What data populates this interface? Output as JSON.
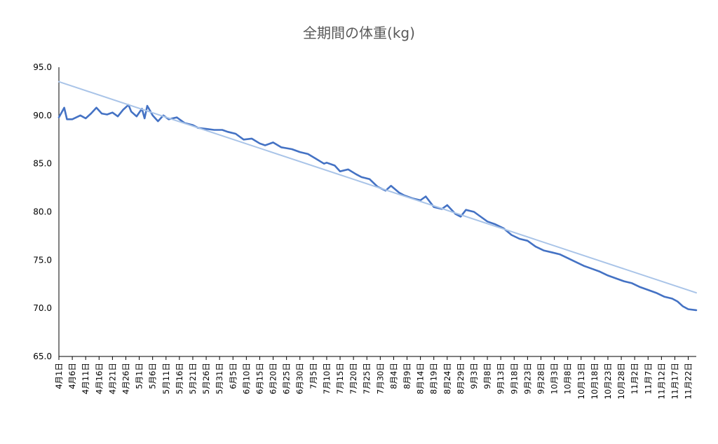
{
  "chart_data": {
    "type": "line",
    "title": "全期間の体重(kg)",
    "xlabel": "",
    "ylabel": "",
    "ylim": [
      65,
      95
    ],
    "yticks": [
      "65.0",
      "70.0",
      "75.0",
      "80.0",
      "85.0",
      "90.0",
      "95.0"
    ],
    "grid": false,
    "x_start": "4月1日",
    "x_end": "11月25日",
    "x_tick_labels": [
      "4月1日",
      "4月6日",
      "4月11日",
      "4月16日",
      "4月21日",
      "4月26日",
      "5月1日",
      "5月6日",
      "5月11日",
      "5月16日",
      "5月21日",
      "5月26日",
      "5月31日",
      "6月5日",
      "6月10日",
      "6月15日",
      "6月20日",
      "6月25日",
      "6月30日",
      "7月5日",
      "7月10日",
      "7月15日",
      "7月20日",
      "7月25日",
      "7月30日",
      "8月4日",
      "8月9日",
      "8月14日",
      "8月19日",
      "8月24日",
      "8月29日",
      "9月3日",
      "9月8日",
      "9月13日",
      "9月18日",
      "9月23日",
      "9月28日",
      "10月3日",
      "10月8日",
      "10月13日",
      "10月18日",
      "10月23日",
      "10月28日",
      "11月2日",
      "11月7日",
      "11月12日",
      "11月17日",
      "11月22日"
    ],
    "series": [
      {
        "color": "#4472c4",
        "x": [
          "4月1日",
          "4月3日",
          "4月4日",
          "4月6日",
          "4月9日",
          "4月11日",
          "4月13日",
          "4月15日",
          "4月17日",
          "4月19日",
          "4月21日",
          "4月23日",
          "4月25日",
          "4月27日",
          "4月28日",
          "4月30日",
          "5月2日",
          "5月3日",
          "5月4日",
          "5月5日",
          "5月6日",
          "5月8日",
          "5月10日",
          "5月12日",
          "5月15日",
          "5月18日",
          "5月21日",
          "5月23日",
          "5月26日",
          "5月29日",
          "6月1日",
          "6月3日",
          "6月6日",
          "6月9日",
          "6月12日",
          "6月15日",
          "6月17日",
          "6月20日",
          "6月23日",
          "6月25日",
          "6月27日",
          "6月30日",
          "7月3日",
          "7月6日",
          "7月9日",
          "7月10日",
          "7月13日",
          "7月15日",
          "7月18日",
          "7月21日",
          "7月23日",
          "7月26日",
          "7月29日",
          "8月1日",
          "8月3日",
          "8月6日",
          "8月8日",
          "8月11日",
          "8月14日",
          "8月16日",
          "8月19日",
          "8月22日",
          "8月24日",
          "8月27日",
          "8月29日",
          "8月31日",
          "9月3日",
          "9月5日",
          "9月8日",
          "9月11日",
          "9月14日",
          "9月17日",
          "9月20日",
          "9月23日",
          "9月26日",
          "9月29日",
          "10月2日",
          "10月5日",
          "10月8日",
          "10月11日",
          "10月14日",
          "10月17日",
          "10月20日",
          "10月23日",
          "10月26日",
          "10月29日",
          "11月1日",
          "11月4日",
          "11月7日",
          "11月10日",
          "11月13日",
          "11月16日",
          "11月18日",
          "11月20日",
          "11月22日",
          "11月25日"
        ],
        "values": [
          89.8,
          90.8,
          89.6,
          89.6,
          90.0,
          89.7,
          90.2,
          90.8,
          90.2,
          90.1,
          90.3,
          89.9,
          90.6,
          91.1,
          90.4,
          89.9,
          90.7,
          89.7,
          91.0,
          90.5,
          90.0,
          89.4,
          90.0,
          89.6,
          89.8,
          89.2,
          89.0,
          88.7,
          88.6,
          88.5,
          88.5,
          88.3,
          88.1,
          87.5,
          87.6,
          87.1,
          86.9,
          87.2,
          86.7,
          86.6,
          86.5,
          86.2,
          86.0,
          85.5,
          85.0,
          85.1,
          84.8,
          84.2,
          84.4,
          83.9,
          83.6,
          83.4,
          82.6,
          82.2,
          82.7,
          82.0,
          81.7,
          81.4,
          81.2,
          81.6,
          80.5,
          80.3,
          80.7,
          79.8,
          79.5,
          80.2,
          80.0,
          79.6,
          79.0,
          78.7,
          78.3,
          77.6,
          77.2,
          77.0,
          76.4,
          76.0,
          75.8,
          75.6,
          75.2,
          74.8,
          74.4,
          74.1,
          73.8,
          73.4,
          73.1,
          72.8,
          72.6,
          72.2,
          71.9,
          71.6,
          71.2,
          71.0,
          70.7,
          70.2,
          69.9,
          69.8
        ]
      },
      {
        "type": "trend",
        "color": "#a9c4e8",
        "x": [
          "4月1日",
          "11月25日"
        ],
        "values": [
          93.5,
          71.6
        ]
      }
    ]
  }
}
